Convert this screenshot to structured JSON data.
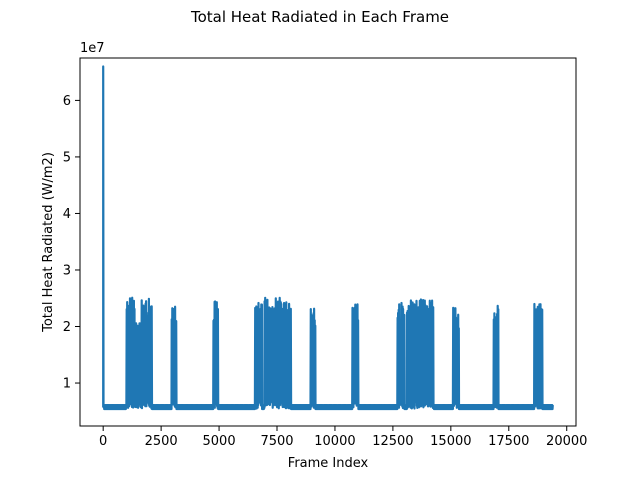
{
  "chart_data": {
    "type": "line",
    "title": "Total Heat Radiated in Each Frame",
    "xlabel": "Frame Index",
    "ylabel": "Total Heat Radiated (W/m2)",
    "y_offset_label": "1e7",
    "xlim": [
      -1000,
      20400
    ],
    "ylim": [
      2.4,
      67.5
    ],
    "y_scale_note": "values in units of 1e7 W/m2",
    "x_ticks": [
      0,
      2500,
      5000,
      7500,
      10000,
      12500,
      15000,
      17500,
      20000
    ],
    "x_tick_labels": [
      "0",
      "2500",
      "5000",
      "7500",
      "10000",
      "12500",
      "15000",
      "17500",
      "20000"
    ],
    "y_ticks": [
      1,
      2,
      3,
      4,
      5,
      6
    ],
    "y_tick_labels": [
      "1",
      "2",
      "3",
      "4",
      "5",
      "6"
    ],
    "grid": false,
    "legend": "none",
    "series": [
      {
        "name": "Total Heat Radiated",
        "color": "#1f77b4",
        "baseline": 5.75,
        "initial_spike": {
          "x": 0,
          "y": 66.0
        },
        "end_x": 19400,
        "bursts": [
          {
            "start": 1000,
            "end": 1350,
            "min": 5.5,
            "max": 25.3
          },
          {
            "start": 1350,
            "end": 1650,
            "min": 5.5,
            "max": 21.5
          },
          {
            "start": 1650,
            "end": 2100,
            "min": 5.5,
            "max": 25.0
          },
          {
            "start": 2950,
            "end": 3150,
            "min": 5.5,
            "max": 23.6
          },
          {
            "start": 4750,
            "end": 4950,
            "min": 5.5,
            "max": 24.5
          },
          {
            "start": 6550,
            "end": 6850,
            "min": 5.5,
            "max": 24.2
          },
          {
            "start": 6950,
            "end": 7700,
            "min": 5.5,
            "max": 25.2
          },
          {
            "start": 7700,
            "end": 8100,
            "min": 5.5,
            "max": 24.5
          },
          {
            "start": 8950,
            "end": 9150,
            "min": 5.5,
            "max": 24.0
          },
          {
            "start": 10750,
            "end": 11000,
            "min": 5.5,
            "max": 24.4
          },
          {
            "start": 12700,
            "end": 13000,
            "min": 5.5,
            "max": 24.5
          },
          {
            "start": 13100,
            "end": 13700,
            "min": 5.5,
            "max": 24.6
          },
          {
            "start": 13700,
            "end": 14250,
            "min": 5.5,
            "max": 25.0
          },
          {
            "start": 15100,
            "end": 15350,
            "min": 5.5,
            "max": 23.3
          },
          {
            "start": 16850,
            "end": 17050,
            "min": 5.5,
            "max": 24.0
          },
          {
            "start": 18600,
            "end": 18950,
            "min": 5.5,
            "max": 24.0
          }
        ]
      }
    ]
  }
}
